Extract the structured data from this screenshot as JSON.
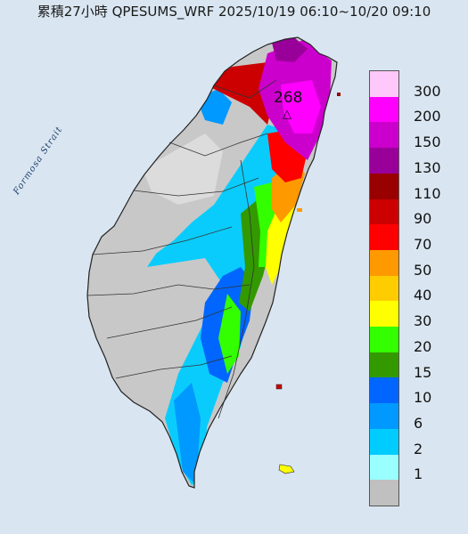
{
  "title": "累積27小時 QPESUMS_WRF 2025/10/19 06:10~10/20 09:10",
  "strait_label": "Formosa Strait",
  "max_value_label": "268",
  "max_marker_symbol": "△",
  "legend": {
    "entries": [
      {
        "label": "300",
        "color": "#ffc8fa"
      },
      {
        "label": "200",
        "color": "#ff00ff"
      },
      {
        "label": "150",
        "color": "#cc00cc"
      },
      {
        "label": "130",
        "color": "#990099"
      },
      {
        "label": "110",
        "color": "#990000"
      },
      {
        "label": "90",
        "color": "#cc0000"
      },
      {
        "label": "70",
        "color": "#ff0000"
      },
      {
        "label": "50",
        "color": "#ff9900"
      },
      {
        "label": "40",
        "color": "#ffcc00"
      },
      {
        "label": "30",
        "color": "#ffff00"
      },
      {
        "label": "20",
        "color": "#33ff00"
      },
      {
        "label": "15",
        "color": "#339900"
      },
      {
        "label": "10",
        "color": "#0066ff"
      },
      {
        "label": "6",
        "color": "#0099ff"
      },
      {
        "label": "2",
        "color": "#00ccff"
      },
      {
        "label": "1",
        "color": "#99ffff"
      },
      {
        "label": "",
        "color": "#c0c0c0"
      }
    ]
  },
  "colors": {
    "sea": "#d9e6f1",
    "land_dry": "#c8c8c8",
    "county_border": "#333333"
  }
}
